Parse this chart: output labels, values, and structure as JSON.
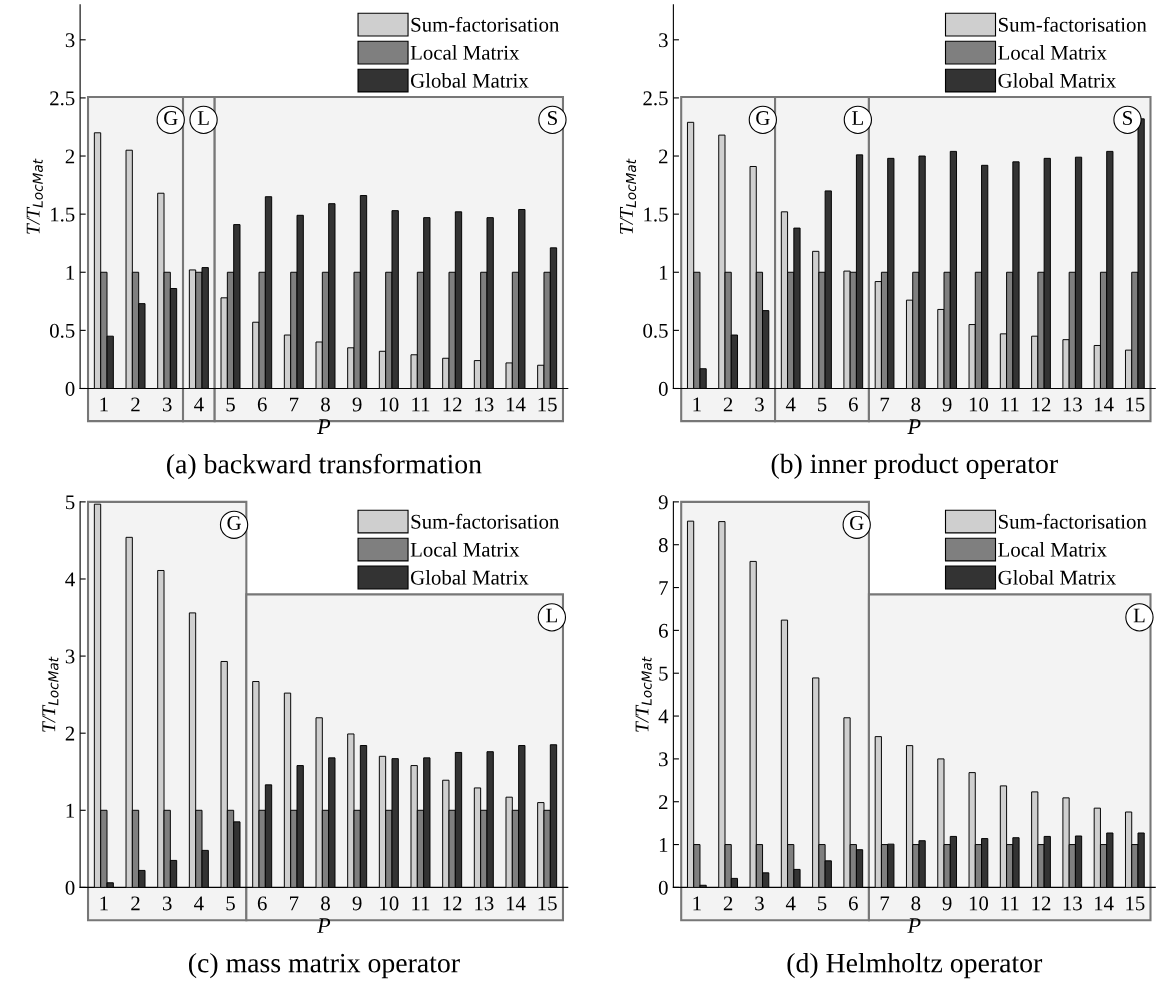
{
  "chart_data": [
    {
      "type": "bar",
      "title": "(a) backward transformation",
      "xlabel": "P",
      "ylabel": "T/T$_{LocMat}$",
      "categories": [
        "1",
        "2",
        "3",
        "4",
        "5",
        "6",
        "7",
        "8",
        "9",
        "10",
        "11",
        "12",
        "13",
        "14",
        "15"
      ],
      "series": [
        {
          "name": "Sum-factorisation",
          "color": "#cfcfcf",
          "values": [
            2.2,
            2.05,
            1.68,
            1.02,
            0.78,
            0.57,
            0.46,
            0.4,
            0.35,
            0.32,
            0.29,
            0.26,
            0.24,
            0.22,
            0.2
          ]
        },
        {
          "name": "Local Matrix",
          "color": "#7f7f7f",
          "values": [
            1,
            1,
            1,
            1,
            1,
            1,
            1,
            1,
            1,
            1,
            1,
            1,
            1,
            1,
            1
          ]
        },
        {
          "name": "Global Matrix",
          "color": "#333333",
          "values": [
            0.45,
            0.73,
            0.86,
            1.04,
            1.41,
            1.65,
            1.49,
            1.59,
            1.66,
            1.53,
            1.47,
            1.52,
            1.47,
            1.54,
            1.21
          ]
        }
      ],
      "ylim": [
        0,
        3.3
      ],
      "yticks": [
        0,
        0.5,
        1,
        1.5,
        2,
        2.5,
        3
      ],
      "legend": "top right",
      "bands": [
        {
          "axis": "x",
          "from": "1",
          "to": "3",
          "label": "G"
        },
        {
          "axis": "x",
          "from": "4",
          "to": "4",
          "label": "L"
        },
        {
          "axis": "x",
          "from": "5",
          "to": "15",
          "label": "S"
        }
      ]
    },
    {
      "type": "bar",
      "title": "(b) inner product operator",
      "xlabel": "P",
      "ylabel": "T/T$_{LocMat}$",
      "categories": [
        "1",
        "2",
        "3",
        "4",
        "5",
        "6",
        "7",
        "8",
        "9",
        "10",
        "11",
        "12",
        "13",
        "14",
        "15"
      ],
      "series": [
        {
          "name": "Sum-factorisation",
          "color": "#cfcfcf",
          "values": [
            2.29,
            2.18,
            1.91,
            1.52,
            1.18,
            1.01,
            0.92,
            0.76,
            0.68,
            0.55,
            0.47,
            0.45,
            0.42,
            0.37,
            0.33
          ]
        },
        {
          "name": "Local Matrix",
          "color": "#7f7f7f",
          "values": [
            1,
            1,
            1,
            1,
            1,
            1,
            1,
            1,
            1,
            1,
            1,
            1,
            1,
            1,
            1
          ]
        },
        {
          "name": "Global Matrix",
          "color": "#333333",
          "values": [
            0.17,
            0.46,
            0.67,
            1.38,
            1.7,
            2.01,
            1.98,
            2.0,
            2.04,
            1.92,
            1.95,
            1.98,
            1.99,
            2.04,
            2.32
          ]
        }
      ],
      "ylim": [
        0,
        3.3
      ],
      "yticks": [
        0,
        0.5,
        1,
        1.5,
        2,
        2.5,
        3
      ],
      "legend": "top right",
      "bands": [
        {
          "axis": "x",
          "from": "1",
          "to": "3",
          "label": "G"
        },
        {
          "axis": "x",
          "from": "4",
          "to": "6",
          "label": "L"
        },
        {
          "axis": "x",
          "from": "7",
          "to": "15",
          "label": "S"
        }
      ]
    },
    {
      "type": "bar",
      "title": "(c) mass matrix operator",
      "xlabel": "P",
      "ylabel": "T/T$_{LocMat}$",
      "categories": [
        "1",
        "2",
        "3",
        "4",
        "5",
        "6",
        "7",
        "8",
        "9",
        "10",
        "11",
        "12",
        "13",
        "14",
        "15"
      ],
      "series": [
        {
          "name": "Sum-factorisation",
          "color": "#cfcfcf",
          "values": [
            4.97,
            4.54,
            4.11,
            3.56,
            2.93,
            2.67,
            2.52,
            2.2,
            1.99,
            1.7,
            1.58,
            1.39,
            1.29,
            1.17,
            1.1
          ]
        },
        {
          "name": "Local Matrix",
          "color": "#7f7f7f",
          "values": [
            1,
            1,
            1,
            1,
            1,
            1,
            1,
            1,
            1,
            1,
            1,
            1,
            1,
            1,
            1
          ]
        },
        {
          "name": "Global Matrix",
          "color": "#333333",
          "values": [
            0.06,
            0.22,
            0.35,
            0.48,
            0.85,
            1.33,
            1.58,
            1.68,
            1.84,
            1.67,
            1.68,
            1.75,
            1.76,
            1.84,
            1.85
          ]
        }
      ],
      "ylim": [
        0,
        5
      ],
      "yticks": [
        0,
        1,
        2,
        3,
        4,
        5
      ],
      "legend": "top right",
      "bands": [
        {
          "axis": "x",
          "from": "1",
          "to": "5",
          "label": "G"
        },
        {
          "axis": "x",
          "from": "6",
          "to": "15",
          "label": "L"
        }
      ]
    },
    {
      "type": "bar",
      "title": "(d) Helmholtz operator",
      "xlabel": "P",
      "ylabel": "T/T$_{LocMat}$",
      "categories": [
        "1",
        "2",
        "3",
        "4",
        "5",
        "6",
        "7",
        "8",
        "9",
        "10",
        "11",
        "12",
        "13",
        "14",
        "15"
      ],
      "series": [
        {
          "name": "Sum-factorisation",
          "color": "#cfcfcf",
          "values": [
            8.55,
            8.54,
            7.61,
            6.24,
            4.89,
            3.96,
            3.52,
            3.31,
            3.0,
            2.68,
            2.37,
            2.23,
            2.09,
            1.85,
            1.76
          ]
        },
        {
          "name": "Local Matrix",
          "color": "#7f7f7f",
          "values": [
            1,
            1,
            1,
            1,
            1,
            1,
            1,
            1,
            1,
            1,
            1,
            1,
            1,
            1,
            1
          ]
        },
        {
          "name": "Global Matrix",
          "color": "#333333",
          "values": [
            0.05,
            0.21,
            0.34,
            0.42,
            0.62,
            0.88,
            1.01,
            1.09,
            1.19,
            1.14,
            1.16,
            1.19,
            1.2,
            1.27,
            1.27
          ]
        }
      ],
      "ylim": [
        0,
        9
      ],
      "yticks": [
        0,
        1,
        2,
        3,
        4,
        5,
        6,
        7,
        8,
        9
      ],
      "legend": "top right",
      "bands": [
        {
          "axis": "x",
          "from": "1",
          "to": "6",
          "label": "G"
        },
        {
          "axis": "x",
          "from": "7",
          "to": "15",
          "label": "L"
        }
      ]
    }
  ]
}
